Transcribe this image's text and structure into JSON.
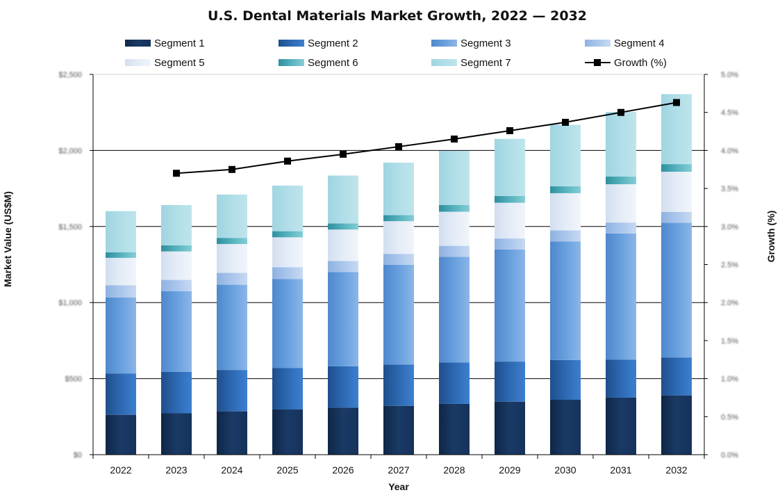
{
  "chart_data": {
    "type": "bar",
    "stacked": true,
    "title": "U.S. Dental Materials Market Growth, 2022 — 2032",
    "xlabel": "Year",
    "ylabel": "Market Value (US$M)",
    "y2label": "Growth (%)",
    "categories": [
      "2022",
      "2023",
      "2024",
      "2025",
      "2026",
      "2027",
      "2028",
      "2029",
      "2030",
      "2031",
      "2032"
    ],
    "ylim": [
      0,
      2500
    ],
    "y_ticks": [
      "$0",
      "$500",
      "$1,000",
      "$1,500",
      "$2,000",
      "$2,500"
    ],
    "y2lim": [
      0,
      5
    ],
    "y2_ticks": [
      "0.0%",
      "0.5%",
      "1.0%",
      "1.5%",
      "2.0%",
      "2.5%",
      "3.0%",
      "3.5%",
      "4.0%",
      "4.5%",
      "5.0%"
    ],
    "grid": true,
    "legend_position": "top",
    "series": [
      {
        "name": "Segment 1",
        "color": "#17375e",
        "values": [
          262,
          272,
          285,
          297,
          309,
          321,
          334,
          348,
          361,
          375,
          390
        ]
      },
      {
        "name": "Segment 2",
        "color": "#2e6cb5",
        "values": [
          272,
          272,
          272,
          272,
          272,
          272,
          272,
          264,
          261,
          249,
          249
        ]
      },
      {
        "name": "Segment 3",
        "color": "#5b95d6",
        "values": [
          500,
          530,
          560,
          585,
          620,
          655,
          695,
          737,
          780,
          830,
          885
        ]
      },
      {
        "name": "Segment 4",
        "color": "#9dbde6",
        "values": [
          80,
          75,
          78,
          78,
          72,
          72,
          72,
          72,
          72,
          72,
          72
        ]
      },
      {
        "name": "Segment 5",
        "color": "#dde6f3",
        "values": [
          180,
          187,
          190,
          197,
          207,
          215,
          224,
          235,
          245,
          252,
          264
        ]
      },
      {
        "name": "Segment 6",
        "color": "#4aabb6",
        "values": [
          37,
          40,
          40,
          40,
          40,
          40,
          45,
          45,
          45,
          50,
          50
        ]
      },
      {
        "name": "Segment 7",
        "color": "#a8dbe6",
        "values": [
          270,
          265,
          285,
          300,
          315,
          345,
          355,
          375,
          405,
          425,
          460
        ]
      }
    ],
    "line_series": {
      "name": "Growth (%)",
      "color": "#000000",
      "axis": "right",
      "values": [
        null,
        3.7,
        3.75,
        3.86,
        3.95,
        4.05,
        4.15,
        4.26,
        4.37,
        4.5,
        4.63
      ]
    }
  }
}
